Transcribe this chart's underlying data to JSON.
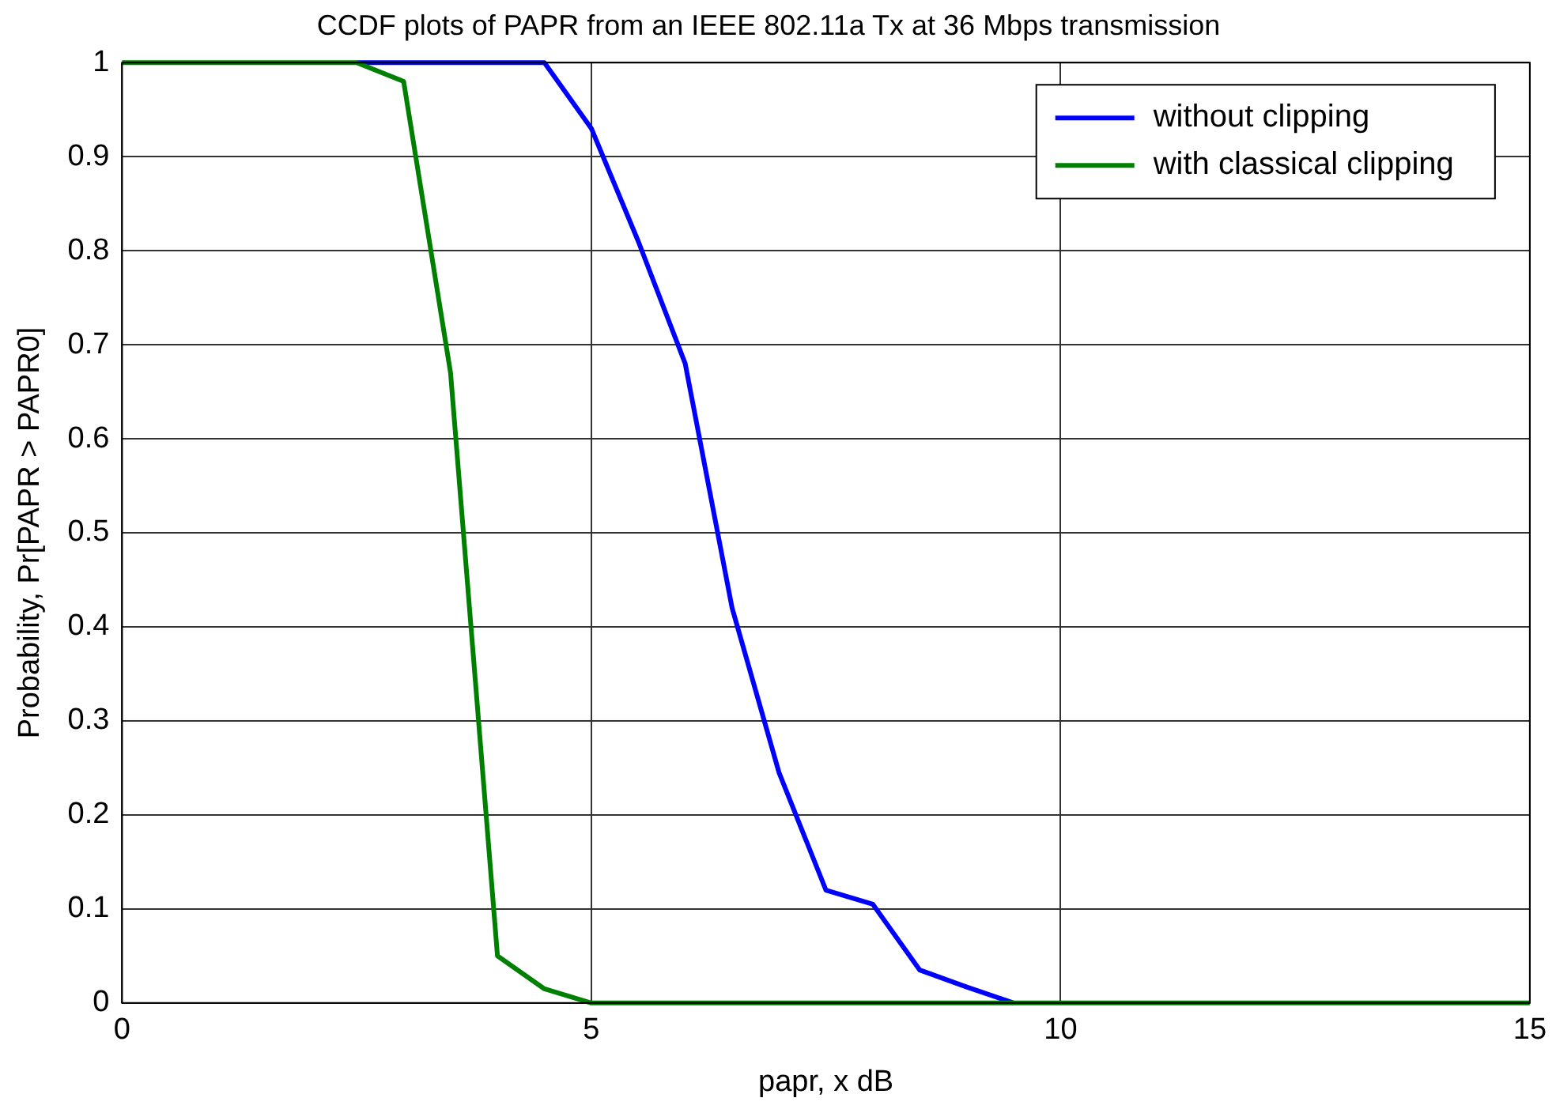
{
  "chart_data": {
    "type": "line",
    "title": "CCDF plots of PAPR from an IEEE 802.11a Tx at 36 Mbps transmission",
    "xlabel": "papr, x dB",
    "ylabel": "Probability, Pr[PAPR > PAPR0]",
    "x": [
      0,
      0.5,
      1,
      1.5,
      2,
      2.5,
      3,
      3.5,
      4,
      4.5,
      5,
      5.5,
      6,
      6.5,
      7,
      7.5,
      8,
      8.5,
      9,
      9.5,
      10,
      10.5,
      11,
      11.5,
      12,
      12.5,
      13,
      13.5,
      14,
      14.5,
      15
    ],
    "series": [
      {
        "name": "without clipping",
        "color": "#0000ff",
        "values": [
          null,
          null,
          null,
          null,
          null,
          1,
          1,
          1,
          1,
          1,
          0.93,
          0.81,
          0.68,
          0.42,
          0.245,
          0.12,
          0.105,
          0.035,
          0.017,
          0,
          null,
          null,
          null,
          null,
          null,
          null,
          null,
          null,
          null,
          null,
          null
        ]
      },
      {
        "name": "with classical clipping",
        "color": "#008000",
        "values": [
          1,
          1,
          1,
          1,
          1,
          1,
          0.98,
          0.67,
          0.05,
          0.015,
          0,
          0,
          0,
          0,
          0,
          0,
          0,
          0,
          0,
          0,
          0,
          0,
          0,
          0,
          0,
          0,
          0,
          0,
          0,
          0,
          0
        ]
      }
    ],
    "xlim": [
      0,
      15
    ],
    "xticks": [
      0,
      5,
      10,
      15
    ],
    "ylim": [
      0,
      1
    ],
    "yticks": [
      0,
      0.1,
      0.2,
      0.3,
      0.4,
      0.5,
      0.6,
      0.7,
      0.8,
      0.9,
      1
    ],
    "grid": true,
    "legend": "top right",
    "marker": "none",
    "line_style": "solid"
  }
}
